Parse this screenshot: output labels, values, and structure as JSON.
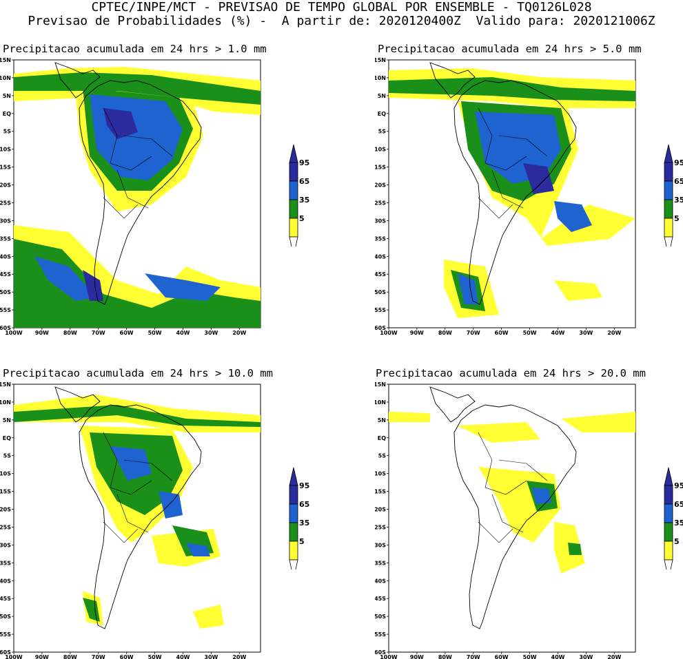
{
  "header": {
    "line1": "CPTEC/INPE/MCT - PREVISAO DE TEMPO GLOBAL POR ENSEMBLE - TQ0126L028",
    "line2": "Previsao de Probabilidades (%) -  A partir de: 2020120400Z  Valido para: 2020121006Z"
  },
  "panels": [
    {
      "title": "Precipitacao acumulada em 24 hrs > 1.0 mm"
    },
    {
      "title": "Precipitacao acumulada em 24 hrs > 5.0 mm"
    },
    {
      "title": "Precipitacao acumulada em 24 hrs > 10.0 mm"
    },
    {
      "title": "Precipitacao acumulada em 24 hrs > 20.0 mm"
    }
  ],
  "lat_labels": [
    "15N",
    "10N",
    "5N",
    "EQ",
    "5S",
    "10S",
    "15S",
    "20S",
    "25S",
    "30S",
    "35S",
    "40S",
    "45S",
    "50S",
    "55S",
    "60S"
  ],
  "lon_labels": [
    "100W",
    "90W",
    "80W",
    "70W",
    "60W",
    "50W",
    "40W",
    "30W",
    "20W"
  ],
  "colorbar": {
    "levels": [
      "95",
      "65",
      "35",
      "5"
    ],
    "colors": {
      "p95": "#2b2b9e",
      "p65": "#1f63d1",
      "p35": "#1a8f1a",
      "p5": "#ffff33"
    }
  }
}
